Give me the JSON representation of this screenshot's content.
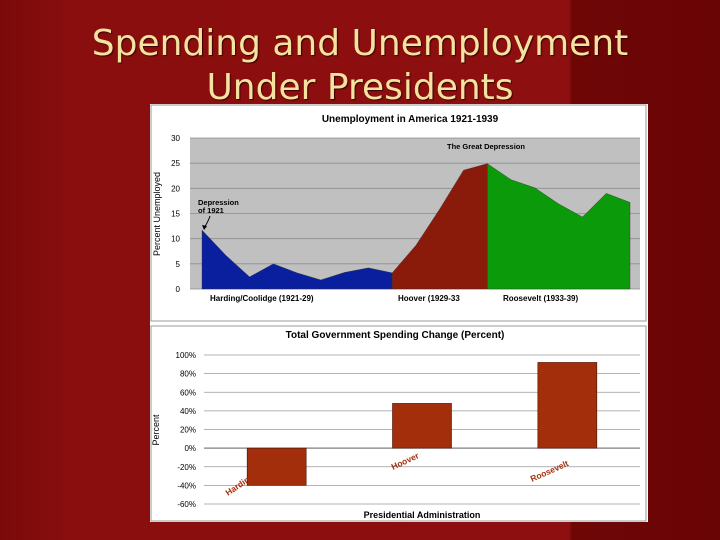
{
  "slide": {
    "title_line1": "Spending and Unemployment",
    "title_line2": "Under Presidents"
  },
  "chart_data": [
    {
      "type": "area",
      "title": "Unemployment in America 1921-1939",
      "ylabel": "Percent Unemployed",
      "xlabel": "",
      "ylim": [
        0,
        30
      ],
      "yticks": [
        0,
        5,
        10,
        15,
        20,
        25,
        30
      ],
      "grid": true,
      "x": [
        1921,
        1922,
        1923,
        1924,
        1925,
        1926,
        1927,
        1928,
        1929,
        1930,
        1931,
        1932,
        1933,
        1934,
        1935,
        1936,
        1937,
        1938,
        1939
      ],
      "values": [
        11.7,
        6.7,
        2.4,
        5.0,
        3.2,
        1.8,
        3.3,
        4.2,
        3.2,
        8.7,
        15.9,
        23.6,
        24.9,
        21.7,
        20.1,
        16.9,
        14.3,
        19.0,
        17.2
      ],
      "series": [
        {
          "name": "Harding/Coolidge (1921-29)",
          "start_index": 0,
          "end_index": 8,
          "color": "#0a1f9e"
        },
        {
          "name": "Hoover (1929-33",
          "start_index": 8,
          "end_index": 12,
          "color": "#8a1a0a"
        },
        {
          "name": "Roosevelt (1933-39)",
          "start_index": 12,
          "end_index": 18,
          "color": "#0a9a0a"
        }
      ],
      "annotations": [
        {
          "text_line1": "Depression",
          "text_line2": "of 1921"
        },
        {
          "text": "The Great Depression"
        }
      ]
    },
    {
      "type": "bar",
      "title": "Total Government Spending Change (Percent)",
      "xlabel": "Presidential Administration",
      "ylabel": "Percent",
      "ylim": [
        -60,
        100
      ],
      "yticks": [
        -60,
        -40,
        -20,
        0,
        20,
        40,
        60,
        80,
        100
      ],
      "ytick_labels": [
        "-60%",
        "-40%",
        "-20%",
        "0%",
        "20%",
        "40%",
        "60%",
        "80%",
        "100%"
      ],
      "grid": true,
      "categories": [
        "Harding/Coolidge",
        "Hoover",
        "Roosevelt"
      ],
      "values": [
        -40,
        48,
        92
      ],
      "bar_color": "#a32e0c"
    }
  ]
}
